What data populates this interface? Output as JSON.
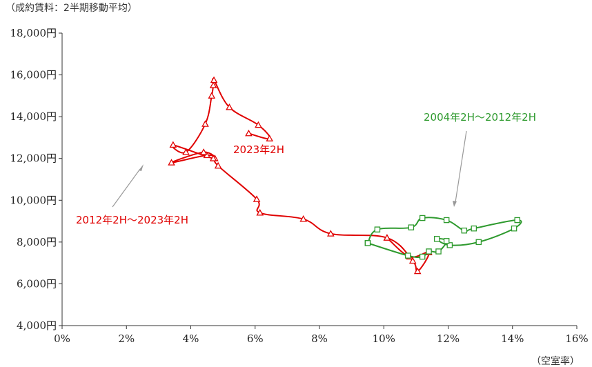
{
  "chart_data": {
    "type": "line",
    "ylabel": "（成約賃料：2半期移動平均）",
    "xlabel": "（空室率）",
    "xlim": [
      0,
      16
    ],
    "ylim": [
      4000,
      18000
    ],
    "x_ticks": [
      0,
      2,
      4,
      6,
      8,
      10,
      12,
      14,
      16
    ],
    "y_ticks": [
      4000,
      6000,
      8000,
      10000,
      12000,
      14000,
      16000,
      18000
    ],
    "x_tick_labels": [
      "0%",
      "2%",
      "4%",
      "6%",
      "8%",
      "10%",
      "12%",
      "14%",
      "16%"
    ],
    "y_tick_labels": [
      "4,000円",
      "6,000円",
      "8,000円",
      "10,000円",
      "12,000円",
      "14,000円",
      "16,000円",
      "18,000円"
    ],
    "grid": false,
    "series": [
      {
        "color": "#e00000",
        "marker": "triangle",
        "points": [
          [
            10.1,
            8200
          ],
          [
            10.8,
            7300
          ],
          [
            11.4,
            7500
          ],
          [
            11.05,
            6600
          ],
          [
            10.9,
            7100
          ],
          [
            10.1,
            8200
          ],
          [
            8.35,
            8400
          ],
          [
            7.5,
            9100
          ],
          [
            6.15,
            9400
          ],
          [
            6.05,
            10050
          ],
          [
            4.85,
            11650
          ],
          [
            4.75,
            12000
          ],
          [
            4.5,
            12150
          ],
          [
            3.4,
            11800
          ],
          [
            4.4,
            12300
          ],
          [
            4.7,
            12000
          ],
          [
            3.45,
            12650
          ],
          [
            3.85,
            12300
          ],
          [
            4.45,
            13650
          ],
          [
            4.65,
            15000
          ],
          [
            4.7,
            15500
          ],
          [
            4.72,
            15750
          ],
          [
            5.2,
            14450
          ],
          [
            6.1,
            13600
          ],
          [
            6.45,
            12950
          ],
          [
            5.8,
            13200
          ]
        ]
      },
      {
        "color": "#2e9a2e",
        "marker": "square",
        "points": [
          [
            9.5,
            7950
          ],
          [
            9.8,
            8600
          ],
          [
            10.85,
            8700
          ],
          [
            11.2,
            9150
          ],
          [
            11.95,
            9050
          ],
          [
            12.5,
            8550
          ],
          [
            12.8,
            8650
          ],
          [
            14.15,
            9050
          ],
          [
            14.05,
            8650
          ],
          [
            12.95,
            8000
          ],
          [
            12.05,
            7850
          ],
          [
            11.65,
            8150
          ],
          [
            11.95,
            8050
          ],
          [
            11.7,
            7550
          ],
          [
            11.4,
            7550
          ],
          [
            11.2,
            7300
          ],
          [
            10.75,
            7350
          ],
          [
            9.5,
            7950
          ]
        ]
      }
    ],
    "annotations": [
      {
        "text": "2023年2H",
        "color": "#e00000"
      },
      {
        "text": "2012年2H～2023年2H",
        "color": "#e00000"
      },
      {
        "text": "2004年2H～2012年2H",
        "color": "#2e9a2e"
      }
    ]
  }
}
